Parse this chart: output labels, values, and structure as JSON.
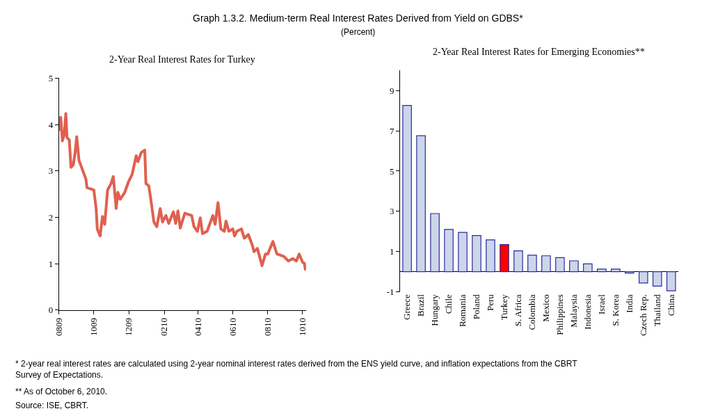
{
  "chart_data": [
    {
      "type": "other",
      "title": "Graph 1.3.2. Medium-term Real Interest Rates Derived from Yield on GDBS*",
      "subtitle": "(Percent)",
      "annotations": [
        "* 2-year real interest rates are calculated using 2-year nominal interest rates derived from the ENS yield curve, and inflation expectations from the CBRT Survey of Expectations.",
        "** As of October 6, 2010.",
        "Source: ISE, CBRT."
      ]
    },
    {
      "type": "line",
      "title": "2-Year Real Interest Rates for Turkey",
      "x": [
        "2009-08-01",
        "2009-08-04",
        "2009-08-07",
        "2009-08-10",
        "2009-08-13",
        "2009-08-15",
        "2009-08-19",
        "2009-08-22",
        "2009-08-26",
        "2009-08-29",
        "2009-09-01",
        "2009-09-05",
        "2009-09-11",
        "2009-09-17",
        "2009-09-19",
        "2009-10-01",
        "2009-10-05",
        "2009-10-07",
        "2009-10-12",
        "2009-10-16",
        "2009-10-20",
        "2009-10-25",
        "2009-10-31",
        "2009-11-04",
        "2009-11-09",
        "2009-11-12",
        "2009-11-16",
        "2009-11-24",
        "2009-12-01",
        "2009-12-07",
        "2009-12-14",
        "2009-12-17",
        "2009-12-23",
        "2009-12-29",
        "2009-12-31",
        "2010-01-05",
        "2010-01-08",
        "2010-01-14",
        "2010-01-19",
        "2010-01-25",
        "2010-01-29",
        "2010-02-04",
        "2010-02-09",
        "2010-02-17",
        "2010-02-21",
        "2010-02-25",
        "2010-03-01",
        "2010-03-09",
        "2010-03-21",
        "2010-03-25",
        "2010-03-31",
        "2010-04-05",
        "2010-04-09",
        "2010-04-17",
        "2010-04-27",
        "2010-05-01",
        "2010-05-06",
        "2010-05-11",
        "2010-05-17",
        "2010-05-20",
        "2010-05-25",
        "2010-06-01",
        "2010-06-04",
        "2010-06-08",
        "2010-06-16",
        "2010-06-21",
        "2010-06-28",
        "2010-07-05",
        "2010-07-08",
        "2010-07-14",
        "2010-07-22",
        "2010-07-28",
        "2010-08-01",
        "2010-08-10",
        "2010-08-17",
        "2010-08-29",
        "2010-09-06",
        "2010-09-14",
        "2010-09-20",
        "2010-09-25",
        "2010-10-01",
        "2010-10-04",
        "2010-10-06"
      ],
      "series": [
        {
          "color": "#e06050",
          "values": [
            3.87,
            4.16,
            3.65,
            3.77,
            4.24,
            3.72,
            3.67,
            3.08,
            3.13,
            3.37,
            3.74,
            3.23,
            3.03,
            2.83,
            2.64,
            2.59,
            2.19,
            1.75,
            1.6,
            2.02,
            1.85,
            2.59,
            2.73,
            2.88,
            2.19,
            2.54,
            2.39,
            2.54,
            2.78,
            2.93,
            3.33,
            3.2,
            3.4,
            3.45,
            2.73,
            2.68,
            2.44,
            1.9,
            1.8,
            2.19,
            1.9,
            2.04,
            1.87,
            2.12,
            1.87,
            2.14,
            1.77,
            2.09,
            2.04,
            1.8,
            1.7,
            1.99,
            1.65,
            1.7,
            2.04,
            1.85,
            2.32,
            1.75,
            1.7,
            1.92,
            1.7,
            1.75,
            1.6,
            1.7,
            1.75,
            1.55,
            1.63,
            1.4,
            1.26,
            1.33,
            0.96,
            1.21,
            1.21,
            1.48,
            1.21,
            1.16,
            1.06,
            1.11,
            1.06,
            1.21,
            1.03,
            1.01,
            0.86
          ]
        }
      ],
      "xlim": [
        "2009-08-01",
        "2010-10-07"
      ],
      "xticks": [
        {
          "value": "2009-08-01",
          "label": "0809"
        },
        {
          "value": "2009-10-01",
          "label": "1009"
        },
        {
          "value": "2009-12-01",
          "label": "1209"
        },
        {
          "value": "2010-02-01",
          "label": "0210"
        },
        {
          "value": "2010-04-01",
          "label": "0410"
        },
        {
          "value": "2010-06-01",
          "label": "0610"
        },
        {
          "value": "2010-08-01",
          "label": "0810"
        },
        {
          "value": "2010-10-01",
          "label": "1010"
        }
      ],
      "ylim": [
        0,
        5
      ],
      "yticks": [
        0,
        1,
        2,
        3,
        4,
        5
      ],
      "marker": "none",
      "line_style": "solid"
    },
    {
      "type": "bar",
      "title": "2-Year Real Interest Rates for Emerging Economies**",
      "categories": [
        "Greece",
        "Brazil",
        "Hungary",
        "Chile",
        "Romania",
        "Poland",
        "Peru",
        "Turkey",
        "S. Africa",
        "Colombia",
        "Mexico",
        "Philippines",
        "Malaysia",
        "Indonesia",
        "Israel",
        "S. Korea",
        "India",
        "Czech Rep.",
        "Thailand",
        "China"
      ],
      "values": [
        8.26,
        6.76,
        2.89,
        2.1,
        1.95,
        1.8,
        1.58,
        1.35,
        1.04,
        0.82,
        0.79,
        0.7,
        0.54,
        0.39,
        0.13,
        0.13,
        -0.07,
        -0.56,
        -0.72,
        -0.95
      ],
      "colors": [
        "#ccd6ea",
        "#ccd6ea",
        "#ccd6ea",
        "#ccd6ea",
        "#ccd6ea",
        "#ccd6ea",
        "#ccd6ea",
        "#ff0000",
        "#ccd6ea",
        "#ccd6ea",
        "#ccd6ea",
        "#ccd6ea",
        "#ccd6ea",
        "#ccd6ea",
        "#ccd6ea",
        "#ccd6ea",
        "#ccd6ea",
        "#ccd6ea",
        "#ccd6ea",
        "#ccd6ea"
      ],
      "ylim": [
        -1,
        10
      ],
      "yticks": [
        -1,
        1,
        3,
        5,
        7,
        9
      ]
    }
  ]
}
